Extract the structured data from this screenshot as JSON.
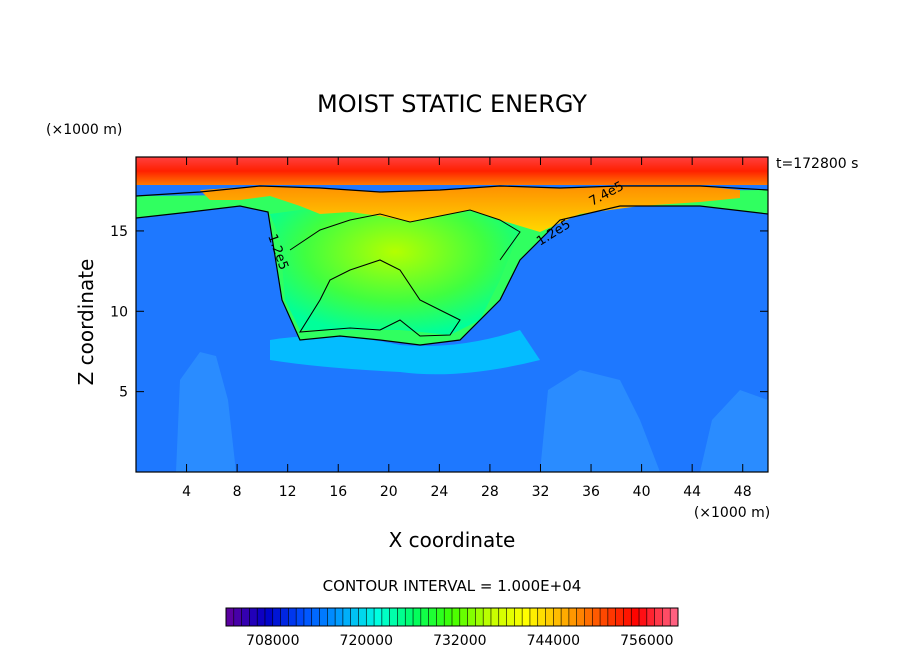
{
  "chart_data": {
    "type": "heatmap",
    "title": "MOIST STATIC ENERGY",
    "xlabel": "X coordinate",
    "ylabel": "Z coordinate",
    "x_unit": "(×1000 m)",
    "y_unit": "(×1000 m)",
    "time_label": "t=172800 s",
    "xlim": [
      0,
      50
    ],
    "ylim": [
      0,
      19.6
    ],
    "x_ticks": [
      4,
      8,
      12,
      16,
      20,
      24,
      28,
      32,
      36,
      40,
      44,
      48
    ],
    "y_ticks": [
      5,
      10,
      15
    ],
    "contour_interval_label": "CONTOUR INTERVAL = 1.000E+04",
    "contour_labels": [
      "1.2e5",
      "1.2e5",
      "7.4e5"
    ],
    "colorbar": {
      "min": 702000,
      "max": 760000,
      "tick_labels": [
        "708000",
        "720000",
        "732000",
        "744000",
        "756000"
      ],
      "tick_values": [
        708000,
        720000,
        732000,
        744000,
        756000
      ],
      "colors": [
        "#5a00a0",
        "#0000c8",
        "#0050ff",
        "#00a0ff",
        "#00ffe0",
        "#00ff60",
        "#40ff00",
        "#c0ff00",
        "#ffff00",
        "#ffb000",
        "#ff5000",
        "#ff0000",
        "#ff6080"
      ]
    },
    "field_colors": {
      "background": "#1e78ff",
      "lower": "#2a8cff",
      "anvil": "#30ff60",
      "core": "#9cff00",
      "upper": "#ffb400",
      "top": "#ff2a00"
    }
  }
}
